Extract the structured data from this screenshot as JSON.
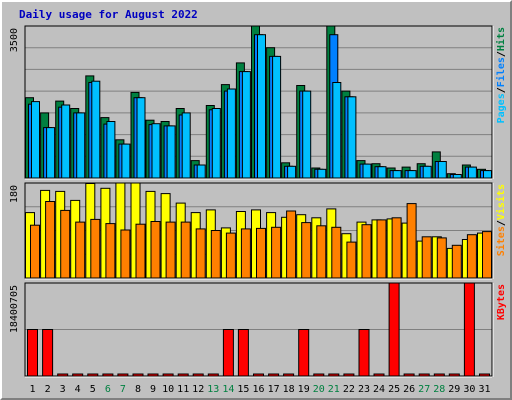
{
  "colors": {
    "hits": "#008040",
    "files": "#0080ff",
    "pages": "#00c0ff",
    "visits": "#ffff00",
    "sites": "#ff8000",
    "kbytes": "#ff0000",
    "weekday_label": "#000000",
    "weekend_label": "#008040",
    "title": "#0000c0"
  },
  "chart_data": {
    "type": "bar",
    "title": "Daily usage for August 2022",
    "categories": [
      "1",
      "2",
      "3",
      "4",
      "5",
      "6",
      "7",
      "8",
      "9",
      "10",
      "11",
      "12",
      "13",
      "14",
      "15",
      "16",
      "17",
      "18",
      "19",
      "20",
      "21",
      "22",
      "23",
      "24",
      "25",
      "26",
      "27",
      "28",
      "29",
      "30",
      "31"
    ],
    "weekend_days": [
      "6",
      "7",
      "13",
      "14",
      "20",
      "21",
      "27",
      "28"
    ],
    "panels": [
      {
        "key": "hits",
        "ymax_label": "3500",
        "ylim": [
          0,
          3500
        ],
        "side_labels": [
          {
            "text": "Pages",
            "color": "#00c0ff"
          },
          {
            "text": "/",
            "color": "#000000"
          },
          {
            "text": "Files",
            "color": "#0080ff"
          },
          {
            "text": "/",
            "color": "#000000"
          },
          {
            "text": "Hits",
            "color": "#008040"
          }
        ],
        "series": [
          {
            "name": "Hits",
            "color": "#008040",
            "values": [
              1850,
              1500,
              1770,
              1600,
              2350,
              1390,
              880,
              1970,
              1330,
              1300,
              1600,
              400,
              1670,
              2150,
              2650,
              3500,
              3000,
              350,
              2130,
              230,
              3500,
              2000,
              400,
              330,
              230,
              250,
              330,
              600,
              100,
              300,
              200
            ]
          },
          {
            "name": "Files",
            "color": "#0080ff",
            "values": [
              1700,
              1160,
              1630,
              1500,
              2200,
              1240,
              780,
              1850,
              1230,
              1200,
              1450,
              300,
              1570,
              2000,
              2450,
              3300,
              2800,
              270,
              2000,
              200,
              3300,
              1870,
              320,
              260,
              170,
              170,
              270,
              380,
              80,
              250,
              170
            ]
          },
          {
            "name": "Pages",
            "color": "#00c0ff",
            "values": [
              1760,
              1160,
              1680,
              1500,
              2230,
              1300,
              780,
              1850,
              1250,
              1200,
              1500,
              300,
              1600,
              2050,
              2450,
              3300,
              2800,
              270,
              2000,
              200,
              2200,
              1870,
              320,
              260,
              170,
              170,
              270,
              380,
              80,
              250,
              170
            ]
          }
        ]
      },
      {
        "key": "visits",
        "ymax_label": "180",
        "ylim": [
          0,
          180
        ],
        "side_labels": [
          {
            "text": "Sites",
            "color": "#ff8000"
          },
          {
            "text": "/",
            "color": "#000000"
          },
          {
            "text": "Visits",
            "color": "#ffff00"
          }
        ],
        "series": [
          {
            "name": "Visits",
            "color": "#ffff00",
            "values": [
              124,
              166,
              164,
              147,
              179,
              170,
              187,
              180,
              164,
              160,
              142,
              124,
              129,
              95,
              126,
              129,
              124,
              115,
              120,
              114,
              131,
              84,
              106,
              110,
              112,
              104,
              70,
              78,
              56,
              73,
              85
            ]
          },
          {
            "name": "Sites",
            "color": "#ff8000",
            "values": [
              100,
              145,
              128,
              106,
              111,
              103,
              91,
              102,
              107,
              106,
              106,
              93,
              90,
              85,
              93,
              94,
              96,
              127,
              105,
              99,
              96,
              68,
              101,
              110,
              114,
              141,
              78,
              76,
              62,
              82,
              88
            ]
          }
        ]
      },
      {
        "key": "kbytes",
        "ymax_label": "18400705",
        "ylim": [
          0,
          18400705
        ],
        "side_labels": [
          {
            "text": "KBytes",
            "color": "#ff0000"
          }
        ],
        "series": [
          {
            "name": "KBytes",
            "color": "#ff0000",
            "values": [
              9200000,
              9200000,
              0,
              0,
              0,
              0,
              0,
              0,
              0,
              0,
              0,
              0,
              0,
              9200000,
              9200000,
              0,
              0,
              0,
              9200000,
              0,
              0,
              0,
              9200000,
              0,
              18400705,
              0,
              0,
              0,
              0,
              18400705,
              0
            ]
          }
        ]
      }
    ]
  }
}
